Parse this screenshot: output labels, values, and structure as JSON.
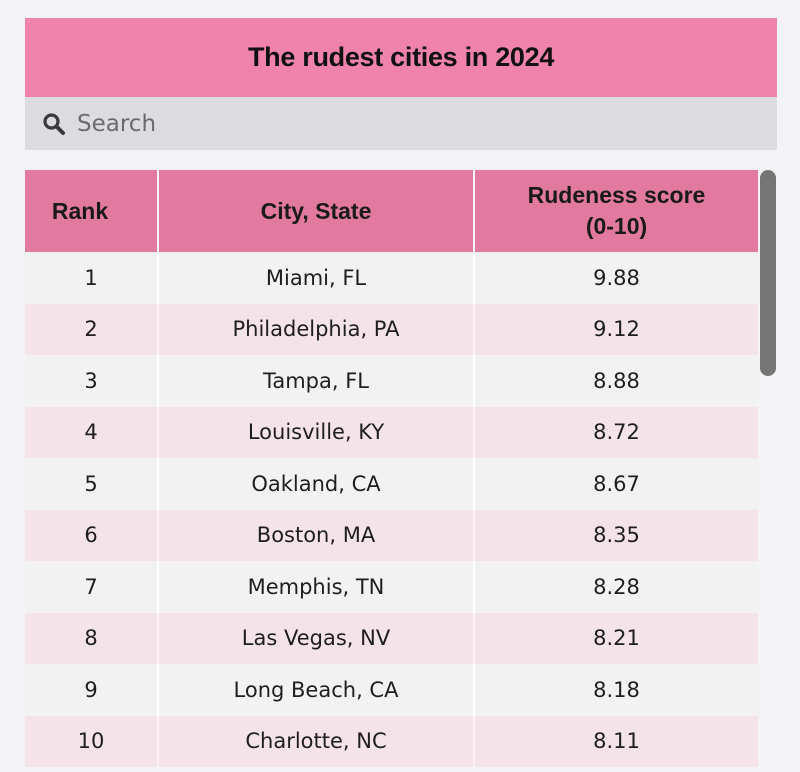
{
  "header": {
    "title": "The rudest cities in 2024"
  },
  "search": {
    "placeholder": "Search",
    "value": ""
  },
  "table": {
    "columns": [
      "Rank",
      "City, State",
      "Rudeness score (0-10)"
    ],
    "header_score_line1": "Rudeness score",
    "header_score_line2": "(0-10)",
    "rows": [
      {
        "rank": "1",
        "city": "Miami, FL",
        "score": "9.88"
      },
      {
        "rank": "2",
        "city": "Philadelphia, PA",
        "score": "9.12"
      },
      {
        "rank": "3",
        "city": "Tampa, FL",
        "score": "8.88"
      },
      {
        "rank": "4",
        "city": "Louisville, KY",
        "score": "8.72"
      },
      {
        "rank": "5",
        "city": "Oakland, CA",
        "score": "8.67"
      },
      {
        "rank": "6",
        "city": "Boston, MA",
        "score": "8.35"
      },
      {
        "rank": "7",
        "city": "Memphis, TN",
        "score": "8.28"
      },
      {
        "rank": "8",
        "city": "Las Vegas, NV",
        "score": "8.21"
      },
      {
        "rank": "9",
        "city": "Long Beach, CA",
        "score": "8.18"
      },
      {
        "rank": "10",
        "city": "Charlotte, NC",
        "score": "8.11"
      }
    ]
  },
  "colors": {
    "title_bg": "#f083ab",
    "header_bg": "#e27a9f",
    "search_bg": "#dcdbe0",
    "row_even": "#f5e3ea",
    "row_odd": "#f3f2f3"
  }
}
